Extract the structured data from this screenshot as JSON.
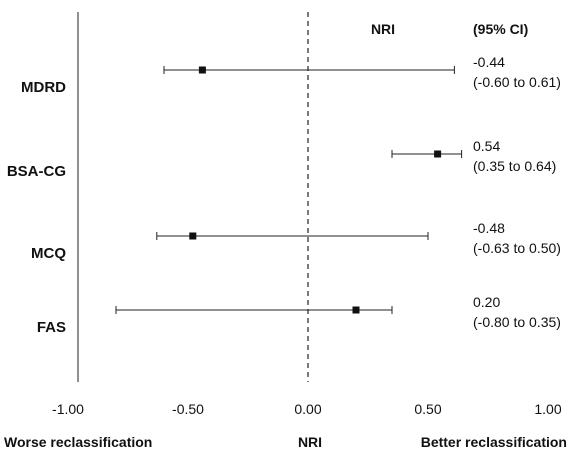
{
  "chart_data": {
    "type": "forest",
    "title": "",
    "column_headers": {
      "estimate": "NRI",
      "ci": "(95% CI)"
    },
    "xlabel_left": "Worse reclassification",
    "xlabel_center": "NRI",
    "xlabel_right": "Better reclassification",
    "xlim": [
      -1.0,
      1.0
    ],
    "xticks": [
      -1.0,
      -0.5,
      0.0,
      0.5,
      1.0
    ],
    "xtick_labels": [
      "-1.00",
      "-0.50",
      "0.00",
      "0.50",
      "1.00"
    ],
    "reference_line": 0.0,
    "rows": [
      {
        "label": "MDRD",
        "estimate": -0.44,
        "ci_low": -0.6,
        "ci_high": 0.61,
        "estimate_text": "-0.44",
        "ci_text": "(-0.60 to 0.61)"
      },
      {
        "label": "BSA-CG",
        "estimate": 0.54,
        "ci_low": 0.35,
        "ci_high": 0.64,
        "estimate_text": "0.54",
        "ci_text": "(0.35 to 0.64)"
      },
      {
        "label": "MCQ",
        "estimate": -0.48,
        "ci_low": -0.63,
        "ci_high": 0.5,
        "estimate_text": "-0.48",
        "ci_text": "(-0.63 to 0.50)"
      },
      {
        "label": "FAS",
        "estimate": 0.2,
        "ci_low": -0.8,
        "ci_high": 0.35,
        "estimate_text": "0.20",
        "ci_text": "(-0.80 to 0.35)"
      }
    ]
  }
}
